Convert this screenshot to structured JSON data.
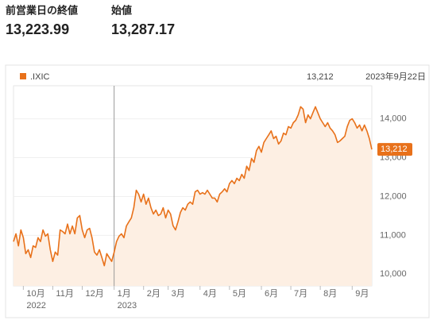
{
  "quote": [
    {
      "label": "前営業日の終値",
      "value": "13,223.99"
    },
    {
      "label": "始値",
      "value": "13,287.17"
    }
  ],
  "chart_data": {
    "type": "line",
    "as_of": "2023年9月22日",
    "categories": [
      null,
      null,
      null,
      null,
      "10月",
      null,
      null,
      null,
      null,
      null,
      null,
      null,
      null,
      null,
      null,
      null,
      "11月",
      null,
      null,
      null,
      null,
      null,
      null,
      null,
      null,
      null,
      null,
      null,
      "12月",
      null,
      null,
      null,
      null,
      null,
      null,
      null,
      null,
      null,
      null,
      null,
      null,
      "1月",
      null,
      null,
      null,
      null,
      null,
      null,
      null,
      null,
      null,
      null,
      null,
      "2月",
      null,
      null,
      null,
      null,
      null,
      null,
      null,
      null,
      null,
      "3月",
      null,
      null,
      null,
      null,
      null,
      null,
      null,
      null,
      null,
      null,
      null,
      null,
      "4月",
      null,
      null,
      null,
      null,
      null,
      null,
      null,
      null,
      null,
      null,
      null,
      "5月",
      null,
      null,
      null,
      null,
      null,
      null,
      null,
      null,
      null,
      null,
      null,
      null,
      "6月",
      null,
      null,
      null,
      null,
      null,
      null,
      null,
      null,
      null,
      null,
      null,
      "7月",
      null,
      null,
      null,
      null,
      null,
      null,
      null,
      null,
      null,
      null,
      null,
      "8月",
      null,
      null,
      null,
      null,
      null,
      null,
      null,
      null,
      null,
      null,
      null,
      null,
      "9月",
      null,
      null,
      null,
      null,
      null,
      null,
      null,
      null
    ],
    "x_sublabels": [
      null,
      null,
      null,
      null,
      "2022",
      null,
      null,
      null,
      null,
      null,
      null,
      null,
      null,
      null,
      null,
      null,
      null,
      null,
      null,
      null,
      null,
      null,
      null,
      null,
      null,
      null,
      null,
      null,
      null,
      null,
      null,
      null,
      null,
      null,
      null,
      null,
      null,
      null,
      null,
      null,
      null,
      "2023",
      null,
      null,
      null,
      null,
      null,
      null,
      null,
      null,
      null,
      null,
      null,
      null,
      null,
      null,
      null,
      null,
      null,
      null,
      null,
      null,
      null,
      null,
      null,
      null,
      null,
      null,
      null,
      null,
      null,
      null,
      null,
      null,
      null,
      null,
      null,
      null,
      null,
      null,
      null,
      null,
      null,
      null,
      null,
      null,
      null,
      null,
      null,
      null,
      null,
      null,
      null,
      null,
      null,
      null,
      null,
      null,
      null,
      null,
      null,
      null,
      null,
      null,
      null,
      null,
      null,
      null,
      null,
      null,
      null,
      null,
      null,
      null,
      null,
      null,
      null,
      null,
      null,
      null,
      null,
      null,
      null,
      null,
      null,
      null,
      null,
      null,
      null,
      null,
      null,
      null,
      null,
      null,
      null,
      null,
      null,
      null,
      null,
      null,
      null,
      null,
      null,
      null,
      null,
      null,
      null
    ],
    "series": [
      {
        "name": ".IXIC",
        "color": "#e8711a",
        "fill": "#fdefe3",
        "values": [
          10840,
          11040,
          10730,
          11140,
          10940,
          10530,
          10630,
          10430,
          10730,
          10690,
          10940,
          10840,
          11140,
          10980,
          11040,
          10630,
          10330,
          10570,
          10490,
          11140,
          11100,
          11040,
          11290,
          11040,
          11240,
          11040,
          11450,
          11510,
          11140,
          10940,
          11140,
          11180,
          10940,
          10570,
          10490,
          10630,
          10430,
          10220,
          10530,
          10430,
          10330,
          10570,
          10840,
          10980,
          11040,
          10940,
          11240,
          11350,
          11450,
          11710,
          12160,
          12060,
          11860,
          12060,
          11800,
          11960,
          11710,
          11550,
          11650,
          11510,
          11550,
          11710,
          11450,
          11650,
          11550,
          11250,
          11140,
          11350,
          11590,
          11710,
          11650,
          11800,
          11860,
          11800,
          12120,
          12160,
          12060,
          12100,
          12060,
          12160,
          12060,
          11960,
          11960,
          11860,
          12060,
          12120,
          12200,
          12120,
          12330,
          12410,
          12330,
          12470,
          12410,
          12570,
          12470,
          12780,
          12670,
          12980,
          12880,
          13180,
          13290,
          13140,
          13390,
          13490,
          13590,
          13690,
          13490,
          13550,
          13350,
          13430,
          13630,
          13590,
          13800,
          13760,
          13900,
          13960,
          14100,
          14310,
          14250,
          13900,
          14100,
          14000,
          14160,
          14310,
          14160,
          14000,
          13900,
          13800,
          13900,
          13760,
          13690,
          13590,
          13390,
          13430,
          13490,
          13550,
          13800,
          13960,
          14000,
          13900,
          13760,
          13840,
          13690,
          13840,
          13690,
          13490,
          13212
        ],
        "value_labels": [
          null,
          null,
          null,
          null,
          null,
          null,
          null,
          null,
          null,
          null,
          null,
          null,
          null,
          null,
          null,
          null,
          null,
          null,
          null,
          null,
          null,
          null,
          null,
          null,
          null,
          null,
          null,
          null,
          null,
          null,
          null,
          null,
          null,
          null,
          null,
          null,
          null,
          null,
          null,
          null,
          null,
          null,
          null,
          null,
          null,
          null,
          null,
          null,
          null,
          null,
          null,
          null,
          null,
          null,
          null,
          null,
          null,
          null,
          null,
          null,
          null,
          null,
          null,
          null,
          null,
          null,
          null,
          null,
          null,
          null,
          null,
          null,
          null,
          null,
          null,
          null,
          null,
          null,
          null,
          null,
          null,
          null,
          null,
          null,
          null,
          null,
          null,
          null,
          null,
          null,
          null,
          null,
          null,
          null,
          null,
          null,
          null,
          null,
          null,
          null,
          null,
          null,
          null,
          null,
          null,
          null,
          null,
          null,
          null,
          null,
          null,
          null,
          null,
          null,
          null,
          null,
          null,
          null,
          null,
          null,
          null,
          null,
          null,
          null,
          null,
          null,
          null,
          null,
          null,
          null,
          null,
          null,
          null,
          null,
          null,
          null,
          null,
          null,
          null,
          null,
          null,
          null,
          null,
          null,
          null,
          null,
          "13,212"
        ]
      }
    ],
    "ylim": [
      9700,
      14850
    ],
    "yticks": [
      {
        "value": 10000,
        "label": "10,000"
      },
      {
        "value": 11000,
        "label": "11,000"
      },
      {
        "value": 12000,
        "label": "12,000"
      },
      {
        "value": 13000,
        "label": "13,000"
      },
      {
        "value": 14000,
        "label": "14,000"
      }
    ],
    "grid": true
  }
}
